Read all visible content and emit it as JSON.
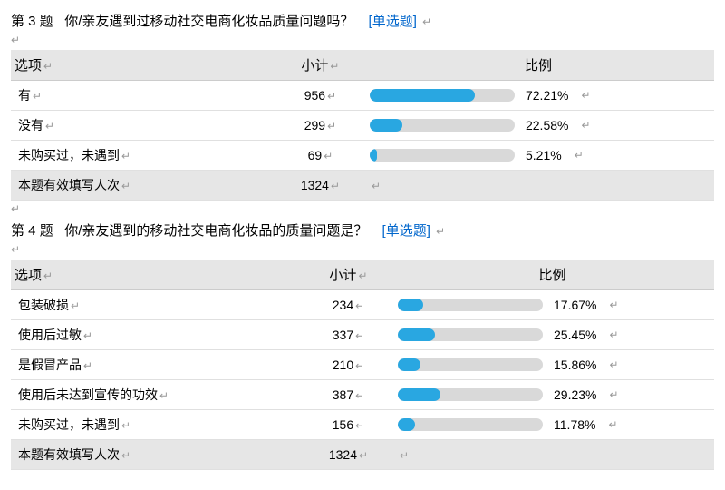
{
  "return_glyph": "↵",
  "bar_track_color": "#d9d9d9",
  "bar_fill_color": "#29a7e1",
  "q3": {
    "title_prefix": "第 3 题",
    "title_text": "你/亲友遇到过移动社交电商化妆品质量问题吗？",
    "tag": "[单选题]",
    "headers": {
      "option": "选项",
      "subtotal": "小计",
      "percent": "比例"
    },
    "rows": [
      {
        "option": "有",
        "subtotal": 956,
        "percent": 72.21
      },
      {
        "option": "没有",
        "subtotal": 299,
        "percent": 22.58
      },
      {
        "option": "未购买过，未遇到",
        "subtotal": 69,
        "percent": 5.21
      }
    ],
    "total_label": "本题有效填写人次",
    "total_value": 1324
  },
  "q4": {
    "title_prefix": "第 4 题",
    "title_text": "你/亲友遇到的移动社交电商化妆品的质量问题是？",
    "tag": "[单选题]",
    "headers": {
      "option": "选项",
      "subtotal": "小计",
      "percent": "比例"
    },
    "rows": [
      {
        "option": "包装破损",
        "subtotal": 234,
        "percent": 17.67
      },
      {
        "option": "使用后过敏",
        "subtotal": 337,
        "percent": 25.45
      },
      {
        "option": "是假冒产品",
        "subtotal": 210,
        "percent": 15.86
      },
      {
        "option": "使用后未达到宣传的功效",
        "subtotal": 387,
        "percent": 29.23
      },
      {
        "option": "未购买过，未遇到",
        "subtotal": 156,
        "percent": 11.78
      }
    ],
    "total_label": "本题有效填写人次",
    "total_value": 1324
  }
}
